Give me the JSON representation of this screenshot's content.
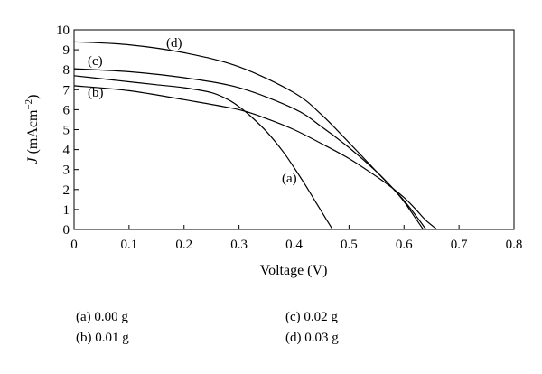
{
  "chart_data": {
    "type": "line",
    "title": "",
    "xlabel": "Voltage (V)",
    "ylabel": {
      "italic": "J",
      "rest": " (mAcm",
      "sup": "−2",
      "close": ")"
    },
    "xlim": [
      0,
      0.8
    ],
    "ylim": [
      0,
      10
    ],
    "x_ticks": [
      "0",
      "0.1",
      "0.2",
      "0.3",
      "0.4",
      "0.5",
      "0.6",
      "0.7",
      "0.8"
    ],
    "y_ticks": [
      "0",
      "1",
      "2",
      "3",
      "4",
      "5",
      "6",
      "7",
      "8",
      "9",
      "10"
    ],
    "grid": false,
    "series": [
      {
        "name": "(a)",
        "legend": "(a) 0.00 g",
        "x": [
          0,
          0.05,
          0.1,
          0.15,
          0.2,
          0.25,
          0.28,
          0.3,
          0.32,
          0.35,
          0.38,
          0.4,
          0.42,
          0.44,
          0.46,
          0.47
        ],
        "y": [
          7.7,
          7.55,
          7.4,
          7.25,
          7.1,
          6.85,
          6.5,
          6.15,
          5.7,
          4.9,
          3.9,
          3.1,
          2.25,
          1.35,
          0.45,
          0
        ]
      },
      {
        "name": "(b)",
        "legend": "(b) 0.01 g",
        "x": [
          0,
          0.1,
          0.2,
          0.3,
          0.35,
          0.4,
          0.45,
          0.5,
          0.55,
          0.58,
          0.6,
          0.62,
          0.64,
          0.66
        ],
        "y": [
          7.2,
          6.95,
          6.5,
          6.0,
          5.55,
          5.0,
          4.3,
          3.55,
          2.65,
          2.05,
          1.6,
          1.05,
          0.45,
          0
        ]
      },
      {
        "name": "(c)",
        "legend": "(c) 0.02 g",
        "x": [
          0,
          0.1,
          0.2,
          0.3,
          0.4,
          0.45,
          0.5,
          0.55,
          0.58,
          0.6,
          0.62,
          0.635
        ],
        "y": [
          8.05,
          7.9,
          7.6,
          7.1,
          6.05,
          5.15,
          4.1,
          2.9,
          2.05,
          1.4,
          0.6,
          0
        ]
      },
      {
        "name": "(d)",
        "legend": "(d) 0.03 g",
        "x": [
          0,
          0.1,
          0.2,
          0.3,
          0.4,
          0.45,
          0.5,
          0.55,
          0.58,
          0.6,
          0.62,
          0.64
        ],
        "y": [
          9.4,
          9.25,
          8.85,
          8.15,
          6.85,
          5.75,
          4.35,
          2.9,
          2.05,
          1.45,
          0.75,
          0
        ]
      }
    ],
    "annotations": [
      "(d)",
      "(c)",
      "(b)",
      "(a)"
    ]
  },
  "legend_block": {
    "a": "(a) 0.00 g",
    "b": "(b) 0.01 g",
    "c": "(c) 0.02 g",
    "d": "(d) 0.03 g"
  }
}
